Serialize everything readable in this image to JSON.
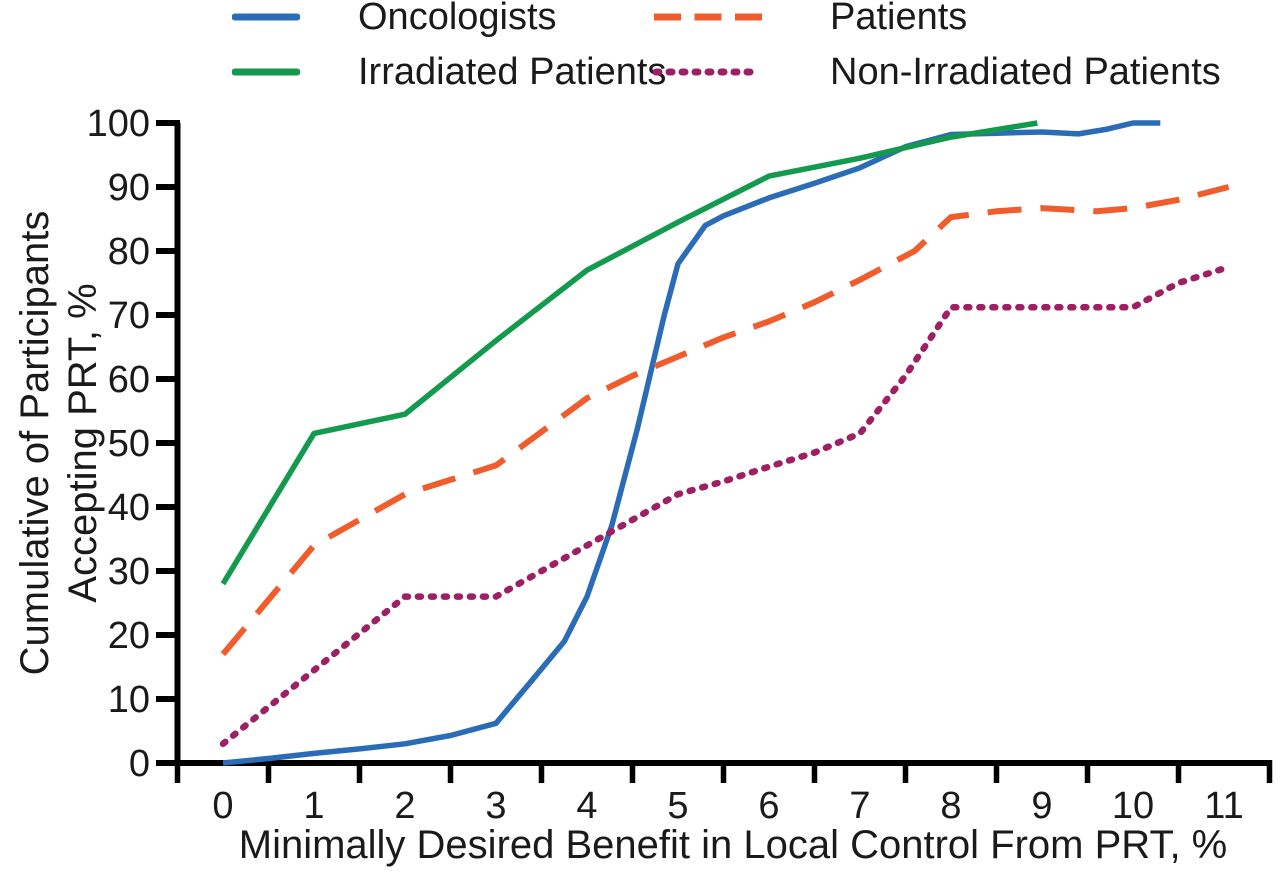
{
  "figure": {
    "background": "#ffffff",
    "text_color": "#1a1a1a"
  },
  "chart_data": {
    "type": "line",
    "title": "",
    "xlabel": "Minimally Desired Benefit in Local Control From PRT, %",
    "ylabel_lines": [
      "Cumulative of Participants",
      "Accepting PRT, %"
    ],
    "xlim": [
      -0.5,
      11.5
    ],
    "ylim": [
      0,
      100
    ],
    "x_tick_labels": [
      "0",
      "1",
      "2",
      "3",
      "4",
      "5",
      "6",
      "7",
      "8",
      "9",
      "10",
      "11"
    ],
    "x_tick_label_values": [
      0,
      1,
      2,
      3,
      4,
      5,
      6,
      7,
      8,
      9,
      10,
      11
    ],
    "x_minor_tick_values": [
      -0.5,
      0.5,
      1.5,
      2.5,
      3.5,
      4.5,
      5.5,
      6.5,
      7.5,
      8.5,
      9.5,
      10.5,
      11.5
    ],
    "y_tick_values": [
      0,
      10,
      20,
      30,
      40,
      50,
      60,
      70,
      80,
      90,
      100
    ],
    "grid": false,
    "legend_position": "top",
    "axis_color": "#000000",
    "series": [
      {
        "name": "Oncologists",
        "color": "#2a6db6",
        "style": "solid",
        "points": [
          [
            0,
            0
          ],
          [
            0.5,
            0.7
          ],
          [
            1,
            1.5
          ],
          [
            1.5,
            2.2
          ],
          [
            2,
            3
          ],
          [
            2.5,
            4.3
          ],
          [
            3,
            6.2
          ],
          [
            3.4,
            13
          ],
          [
            3.75,
            19
          ],
          [
            4,
            26
          ],
          [
            4.27,
            37
          ],
          [
            4.55,
            52
          ],
          [
            4.85,
            70
          ],
          [
            5,
            78
          ],
          [
            5.3,
            84
          ],
          [
            5.5,
            85.5
          ],
          [
            6,
            88.3
          ],
          [
            6.5,
            90.6
          ],
          [
            7,
            93
          ],
          [
            7.5,
            96.3
          ],
          [
            8,
            98.2
          ],
          [
            8.5,
            98.4
          ],
          [
            9,
            98.6
          ],
          [
            9.4,
            98.3
          ],
          [
            9.7,
            99
          ],
          [
            10,
            100
          ],
          [
            10.3,
            100
          ]
        ]
      },
      {
        "name": "Patients",
        "color": "#f15c2c",
        "style": "dashed",
        "points": [
          [
            0,
            17
          ],
          [
            1,
            34
          ],
          [
            2,
            42
          ],
          [
            3,
            46.5
          ],
          [
            4,
            57
          ],
          [
            4.5,
            60.5
          ],
          [
            5,
            63.5
          ],
          [
            5.5,
            66.5
          ],
          [
            6,
            69
          ],
          [
            6.5,
            72
          ],
          [
            7,
            75.5
          ],
          [
            7.6,
            80
          ],
          [
            8,
            85.3
          ],
          [
            8.5,
            86.2
          ],
          [
            9,
            86.7
          ],
          [
            9.6,
            86.2
          ],
          [
            10,
            86.7
          ],
          [
            10.5,
            88
          ],
          [
            11.05,
            90
          ]
        ]
      },
      {
        "name": "Irradiated Patients",
        "color": "#149a4e",
        "style": "solid",
        "points": [
          [
            0,
            28
          ],
          [
            1,
            51.5
          ],
          [
            2,
            54.5
          ],
          [
            3,
            66
          ],
          [
            4,
            77
          ],
          [
            5,
            84.5
          ],
          [
            6,
            91.7
          ],
          [
            7,
            94.5
          ],
          [
            8,
            97.8
          ],
          [
            8.95,
            100
          ]
        ]
      },
      {
        "name": "Non-Irradiated Patients",
        "color": "#9e1f63",
        "style": "dotted",
        "points": [
          [
            0,
            3
          ],
          [
            1,
            14.5
          ],
          [
            2,
            26
          ],
          [
            3,
            26
          ],
          [
            4,
            34
          ],
          [
            5,
            42
          ],
          [
            5.5,
            44
          ],
          [
            6,
            46.3
          ],
          [
            6.5,
            48.5
          ],
          [
            7,
            51.5
          ],
          [
            7.5,
            60.5
          ],
          [
            8,
            71.2
          ],
          [
            9,
            71.2
          ],
          [
            10,
            71.2
          ],
          [
            10.5,
            75
          ],
          [
            11.05,
            77.5
          ]
        ]
      }
    ]
  }
}
